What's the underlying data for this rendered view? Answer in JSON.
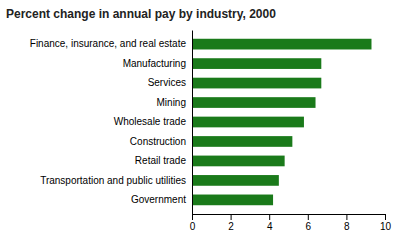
{
  "chart_data": {
    "type": "bar",
    "orientation": "horizontal",
    "title": "Percent change in annual pay by industry, 2000",
    "categories": [
      "Government",
      "Transportation and public utilities",
      "Retail trade",
      "Construction",
      "Wholesale trade",
      "Mining",
      "Services",
      "Manufacturing",
      "Finance, insurance, and real estate"
    ],
    "values": [
      4.2,
      4.5,
      4.8,
      5.2,
      5.8,
      6.4,
      6.7,
      6.7,
      9.3
    ],
    "color": "#1a7a1a",
    "xlim": [
      0,
      10
    ],
    "xticks": [
      0,
      2,
      4,
      6,
      8,
      10
    ],
    "grid": false
  }
}
